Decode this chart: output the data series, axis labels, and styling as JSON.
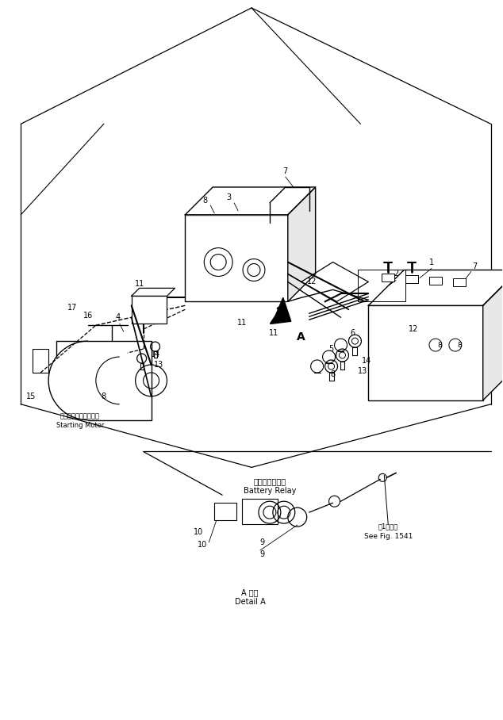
{
  "bg_color": "#ffffff",
  "lc": "#000000",
  "figsize": [
    6.34,
    9.08
  ],
  "dpi": 100,
  "labels": {
    "starting_motor_jp": "スターティングモータ",
    "starting_motor_en": "Starting Motor",
    "battery_relay_jp": "バッテリリレー",
    "battery_relay_en": "Battery Relay",
    "see_fig_jp": "ㅔ1図参照",
    "see_fig_en": "See Fig. 1541",
    "detail_a_jp": "A 詳細",
    "detail_a_en": "Detail A",
    "arrow_a": "A"
  }
}
